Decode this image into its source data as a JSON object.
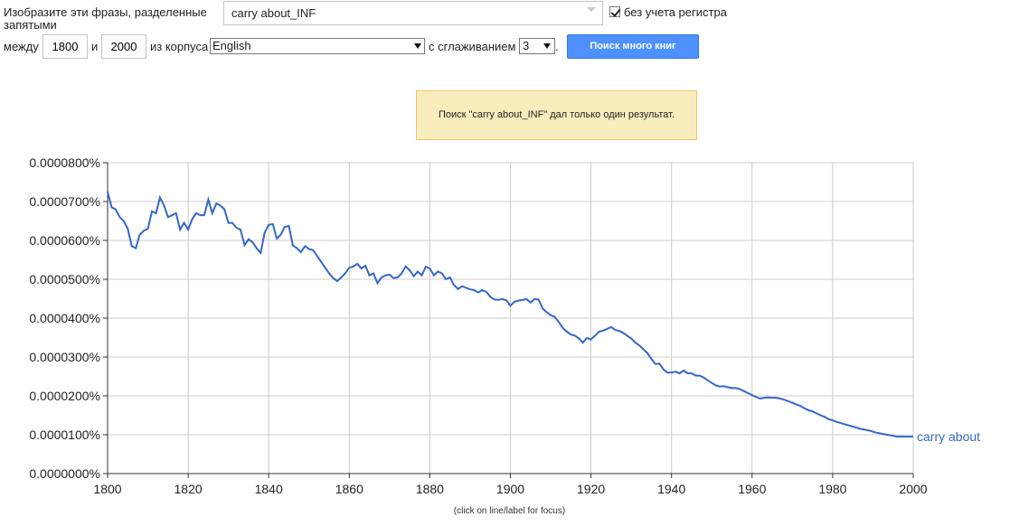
{
  "form": {
    "prompt_line1": "Изобразите эти фразы, разделенные",
    "prompt_line2": "запятыми",
    "query_value": "carry about_INF",
    "case_insensitive_label": "без учета регистра",
    "case_insensitive_checked": true,
    "between_label": "между",
    "year_start": "1800",
    "and_label": "и",
    "year_end": "2000",
    "corpus_label": "из корпуса",
    "corpus_value": "English",
    "smoothing_label": "с сглаживанием",
    "smoothing_value": "3",
    "smoothing_suffix": ".",
    "search_button_label": "Поиск много книг"
  },
  "notice": {
    "text": "Поиск \"carry about_INF\" дал только один результат."
  },
  "footnote": "(click on line/label for focus)",
  "colors": {
    "line": "#3366cc",
    "button": "#4d90fe",
    "notice_bg": "#f9edbe",
    "notice_border": "#f0c36d"
  },
  "chart_data": {
    "type": "line",
    "xlabel": "",
    "ylabel": "",
    "xlim": [
      1800,
      2000
    ],
    "ylim": [
      0,
      8e-06
    ],
    "x_ticks": [
      1800,
      1820,
      1840,
      1860,
      1880,
      1900,
      1920,
      1940,
      1960,
      1980,
      2000
    ],
    "y_ticks": [
      "0.0000000%",
      "0.0000100%",
      "0.0000200%",
      "0.0000300%",
      "0.0000400%",
      "0.0000500%",
      "0.0000600%",
      "0.0000700%",
      "0.0000800%"
    ],
    "grid": true,
    "series": [
      {
        "name": "carry about",
        "color": "#3366cc",
        "points": [
          [
            1800,
            7.25e-06
          ],
          [
            1801,
            6.85e-06
          ],
          [
            1802,
            6.8e-06
          ],
          [
            1803,
            6.6e-06
          ],
          [
            1804,
            6.5e-06
          ],
          [
            1805,
            6.3e-06
          ],
          [
            1806,
            5.85e-06
          ],
          [
            1807,
            5.8e-06
          ],
          [
            1808,
            6.15e-06
          ],
          [
            1809,
            6.25e-06
          ],
          [
            1810,
            6.3e-06
          ],
          [
            1811,
            6.75e-06
          ],
          [
            1812,
            6.7e-06
          ],
          [
            1813,
            7.1e-06
          ],
          [
            1814,
            6.9e-06
          ],
          [
            1815,
            6.6e-06
          ],
          [
            1816,
            6.65e-06
          ],
          [
            1817,
            6.7e-06
          ],
          [
            1818,
            6.28e-06
          ],
          [
            1819,
            6.45e-06
          ],
          [
            1820,
            6.28e-06
          ],
          [
            1821,
            6.55e-06
          ],
          [
            1822,
            6.7e-06
          ],
          [
            1823,
            6.65e-06
          ],
          [
            1824,
            6.65e-06
          ],
          [
            1825,
            7.05e-06
          ],
          [
            1826,
            6.7e-06
          ],
          [
            1827,
            6.95e-06
          ],
          [
            1828,
            6.9e-06
          ],
          [
            1829,
            6.8e-06
          ],
          [
            1830,
            6.45e-06
          ],
          [
            1831,
            6.45e-06
          ],
          [
            1832,
            6.32e-06
          ],
          [
            1833,
            6.28e-06
          ],
          [
            1834,
            5.88e-06
          ],
          [
            1835,
            6.03e-06
          ],
          [
            1836,
            5.95e-06
          ],
          [
            1837,
            5.8e-06
          ],
          [
            1838,
            5.68e-06
          ],
          [
            1839,
            6.2e-06
          ],
          [
            1840,
            6.4e-06
          ],
          [
            1841,
            6.42e-06
          ],
          [
            1842,
            6.05e-06
          ],
          [
            1843,
            6.15e-06
          ],
          [
            1844,
            6.35e-06
          ],
          [
            1845,
            6.37e-06
          ],
          [
            1846,
            5.87e-06
          ],
          [
            1847,
            5.8e-06
          ],
          [
            1848,
            5.7e-06
          ],
          [
            1849,
            5.85e-06
          ],
          [
            1850,
            5.78e-06
          ],
          [
            1851,
            5.75e-06
          ],
          [
            1852,
            5.6e-06
          ],
          [
            1853,
            5.45e-06
          ],
          [
            1854,
            5.3e-06
          ],
          [
            1855,
            5.15e-06
          ],
          [
            1856,
            5.03e-06
          ],
          [
            1857,
            4.95e-06
          ],
          [
            1858,
            5.05e-06
          ],
          [
            1859,
            5.15e-06
          ],
          [
            1860,
            5.3e-06
          ],
          [
            1861,
            5.33e-06
          ],
          [
            1862,
            5.4e-06
          ],
          [
            1863,
            5.28e-06
          ],
          [
            1864,
            5.35e-06
          ],
          [
            1865,
            5.1e-06
          ],
          [
            1866,
            5.15e-06
          ],
          [
            1867,
            4.9e-06
          ],
          [
            1868,
            5.05e-06
          ],
          [
            1869,
            5.1e-06
          ],
          [
            1870,
            5.12e-06
          ],
          [
            1871,
            5.03e-06
          ],
          [
            1872,
            5.05e-06
          ],
          [
            1873,
            5.15e-06
          ],
          [
            1874,
            5.33e-06
          ],
          [
            1875,
            5.23e-06
          ],
          [
            1876,
            5.08e-06
          ],
          [
            1877,
            5.2e-06
          ],
          [
            1878,
            5.1e-06
          ],
          [
            1879,
            5.32e-06
          ],
          [
            1880,
            5.28e-06
          ],
          [
            1881,
            5.1e-06
          ],
          [
            1882,
            5.2e-06
          ],
          [
            1883,
            5.15e-06
          ],
          [
            1884,
            5e-06
          ],
          [
            1885,
            5.05e-06
          ],
          [
            1886,
            4.85e-06
          ],
          [
            1887,
            4.75e-06
          ],
          [
            1888,
            4.82e-06
          ],
          [
            1889,
            4.78e-06
          ],
          [
            1890,
            4.74e-06
          ],
          [
            1891,
            4.72e-06
          ],
          [
            1892,
            4.66e-06
          ],
          [
            1893,
            4.72e-06
          ],
          [
            1894,
            4.68e-06
          ],
          [
            1895,
            4.55e-06
          ],
          [
            1896,
            4.48e-06
          ],
          [
            1897,
            4.47e-06
          ],
          [
            1898,
            4.49e-06
          ],
          [
            1899,
            4.46e-06
          ],
          [
            1900,
            4.32e-06
          ],
          [
            1901,
            4.42e-06
          ],
          [
            1902,
            4.45e-06
          ],
          [
            1903,
            4.47e-06
          ],
          [
            1904,
            4.49e-06
          ],
          [
            1905,
            4.4e-06
          ],
          [
            1906,
            4.49e-06
          ],
          [
            1907,
            4.48e-06
          ],
          [
            1908,
            4.25e-06
          ],
          [
            1909,
            4.15e-06
          ],
          [
            1910,
            4.08e-06
          ],
          [
            1911,
            4.03e-06
          ],
          [
            1912,
            3.9e-06
          ],
          [
            1913,
            3.75e-06
          ],
          [
            1914,
            3.65e-06
          ],
          [
            1915,
            3.58e-06
          ],
          [
            1916,
            3.55e-06
          ],
          [
            1917,
            3.48e-06
          ],
          [
            1918,
            3.37e-06
          ],
          [
            1919,
            3.49e-06
          ],
          [
            1920,
            3.45e-06
          ],
          [
            1921,
            3.55e-06
          ],
          [
            1922,
            3.65e-06
          ],
          [
            1923,
            3.68e-06
          ],
          [
            1924,
            3.72e-06
          ],
          [
            1925,
            3.77e-06
          ],
          [
            1926,
            3.7e-06
          ],
          [
            1927,
            3.67e-06
          ],
          [
            1928,
            3.62e-06
          ],
          [
            1929,
            3.55e-06
          ],
          [
            1930,
            3.48e-06
          ],
          [
            1931,
            3.37e-06
          ],
          [
            1932,
            3.3e-06
          ],
          [
            1933,
            3.2e-06
          ],
          [
            1934,
            3.1e-06
          ],
          [
            1935,
            2.95e-06
          ],
          [
            1936,
            2.82e-06
          ],
          [
            1937,
            2.83e-06
          ],
          [
            1938,
            2.68e-06
          ],
          [
            1939,
            2.6e-06
          ],
          [
            1940,
            2.6e-06
          ],
          [
            1941,
            2.62e-06
          ],
          [
            1942,
            2.58e-06
          ],
          [
            1943,
            2.65e-06
          ],
          [
            1944,
            2.58e-06
          ],
          [
            1945,
            2.58e-06
          ],
          [
            1946,
            2.52e-06
          ],
          [
            1947,
            2.52e-06
          ],
          [
            1948,
            2.47e-06
          ],
          [
            1949,
            2.4e-06
          ],
          [
            1950,
            2.33e-06
          ],
          [
            1951,
            2.27e-06
          ],
          [
            1952,
            2.24e-06
          ],
          [
            1953,
            2.25e-06
          ],
          [
            1954,
            2.22e-06
          ],
          [
            1955,
            2.2e-06
          ],
          [
            1956,
            2.2e-06
          ],
          [
            1957,
            2.17e-06
          ],
          [
            1958,
            2.12e-06
          ],
          [
            1959,
            2.07e-06
          ],
          [
            1960,
            2.02e-06
          ],
          [
            1961,
            1.97e-06
          ],
          [
            1962,
            1.93e-06
          ],
          [
            1963,
            1.95e-06
          ],
          [
            1964,
            1.96e-06
          ],
          [
            1965,
            1.95e-06
          ],
          [
            1966,
            1.95e-06
          ],
          [
            1967,
            1.93e-06
          ],
          [
            1968,
            1.9e-06
          ],
          [
            1969,
            1.86e-06
          ],
          [
            1970,
            1.82e-06
          ],
          [
            1971,
            1.78e-06
          ],
          [
            1972,
            1.74e-06
          ],
          [
            1973,
            1.68e-06
          ],
          [
            1974,
            1.63e-06
          ],
          [
            1975,
            1.6e-06
          ],
          [
            1976,
            1.55e-06
          ],
          [
            1977,
            1.5e-06
          ],
          [
            1978,
            1.46e-06
          ],
          [
            1979,
            1.4e-06
          ],
          [
            1980,
            1.37e-06
          ],
          [
            1981,
            1.33e-06
          ],
          [
            1982,
            1.3e-06
          ],
          [
            1983,
            1.27e-06
          ],
          [
            1984,
            1.24e-06
          ],
          [
            1985,
            1.21e-06
          ],
          [
            1986,
            1.18e-06
          ],
          [
            1987,
            1.15e-06
          ],
          [
            1988,
            1.13e-06
          ],
          [
            1989,
            1.11e-06
          ],
          [
            1990,
            1.08e-06
          ],
          [
            1991,
            1.05e-06
          ],
          [
            1992,
            1.03e-06
          ],
          [
            1993,
            1.01e-06
          ],
          [
            1994,
            9.9e-07
          ],
          [
            1995,
            9.7e-07
          ],
          [
            1996,
            9.5e-07
          ],
          [
            1997,
            9.5e-07
          ],
          [
            1998,
            9.5e-07
          ],
          [
            1999,
            9.5e-07
          ],
          [
            2000,
            9.5e-07
          ]
        ]
      }
    ]
  }
}
